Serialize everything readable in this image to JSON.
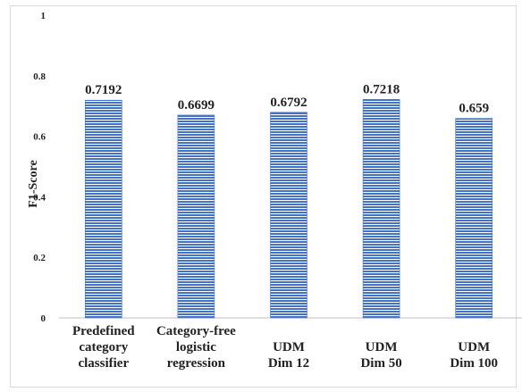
{
  "chart_data": {
    "type": "bar",
    "ylabel": "F1-Score",
    "xlabel": "",
    "ylim": [
      0,
      1
    ],
    "yticks": [
      "0",
      "0.2",
      "0.4",
      "0.6",
      "0.8",
      "1"
    ],
    "grid": false,
    "categories": [
      [
        "Predefined",
        "category",
        "classifier"
      ],
      [
        "Category-free",
        "logistic",
        "regression"
      ],
      [
        "UDM",
        "Dim 12"
      ],
      [
        "UDM",
        "Dim 50"
      ],
      [
        "UDM",
        "Dim 100"
      ]
    ],
    "values": [
      0.7192,
      0.6699,
      0.6792,
      0.7218,
      0.659
    ],
    "data_labels": [
      "0.7192",
      "0.6699",
      "0.6792",
      "0.7218",
      "0.659"
    ],
    "bar_color": "#4472c4",
    "bar_fill": "horizontal-lines"
  }
}
